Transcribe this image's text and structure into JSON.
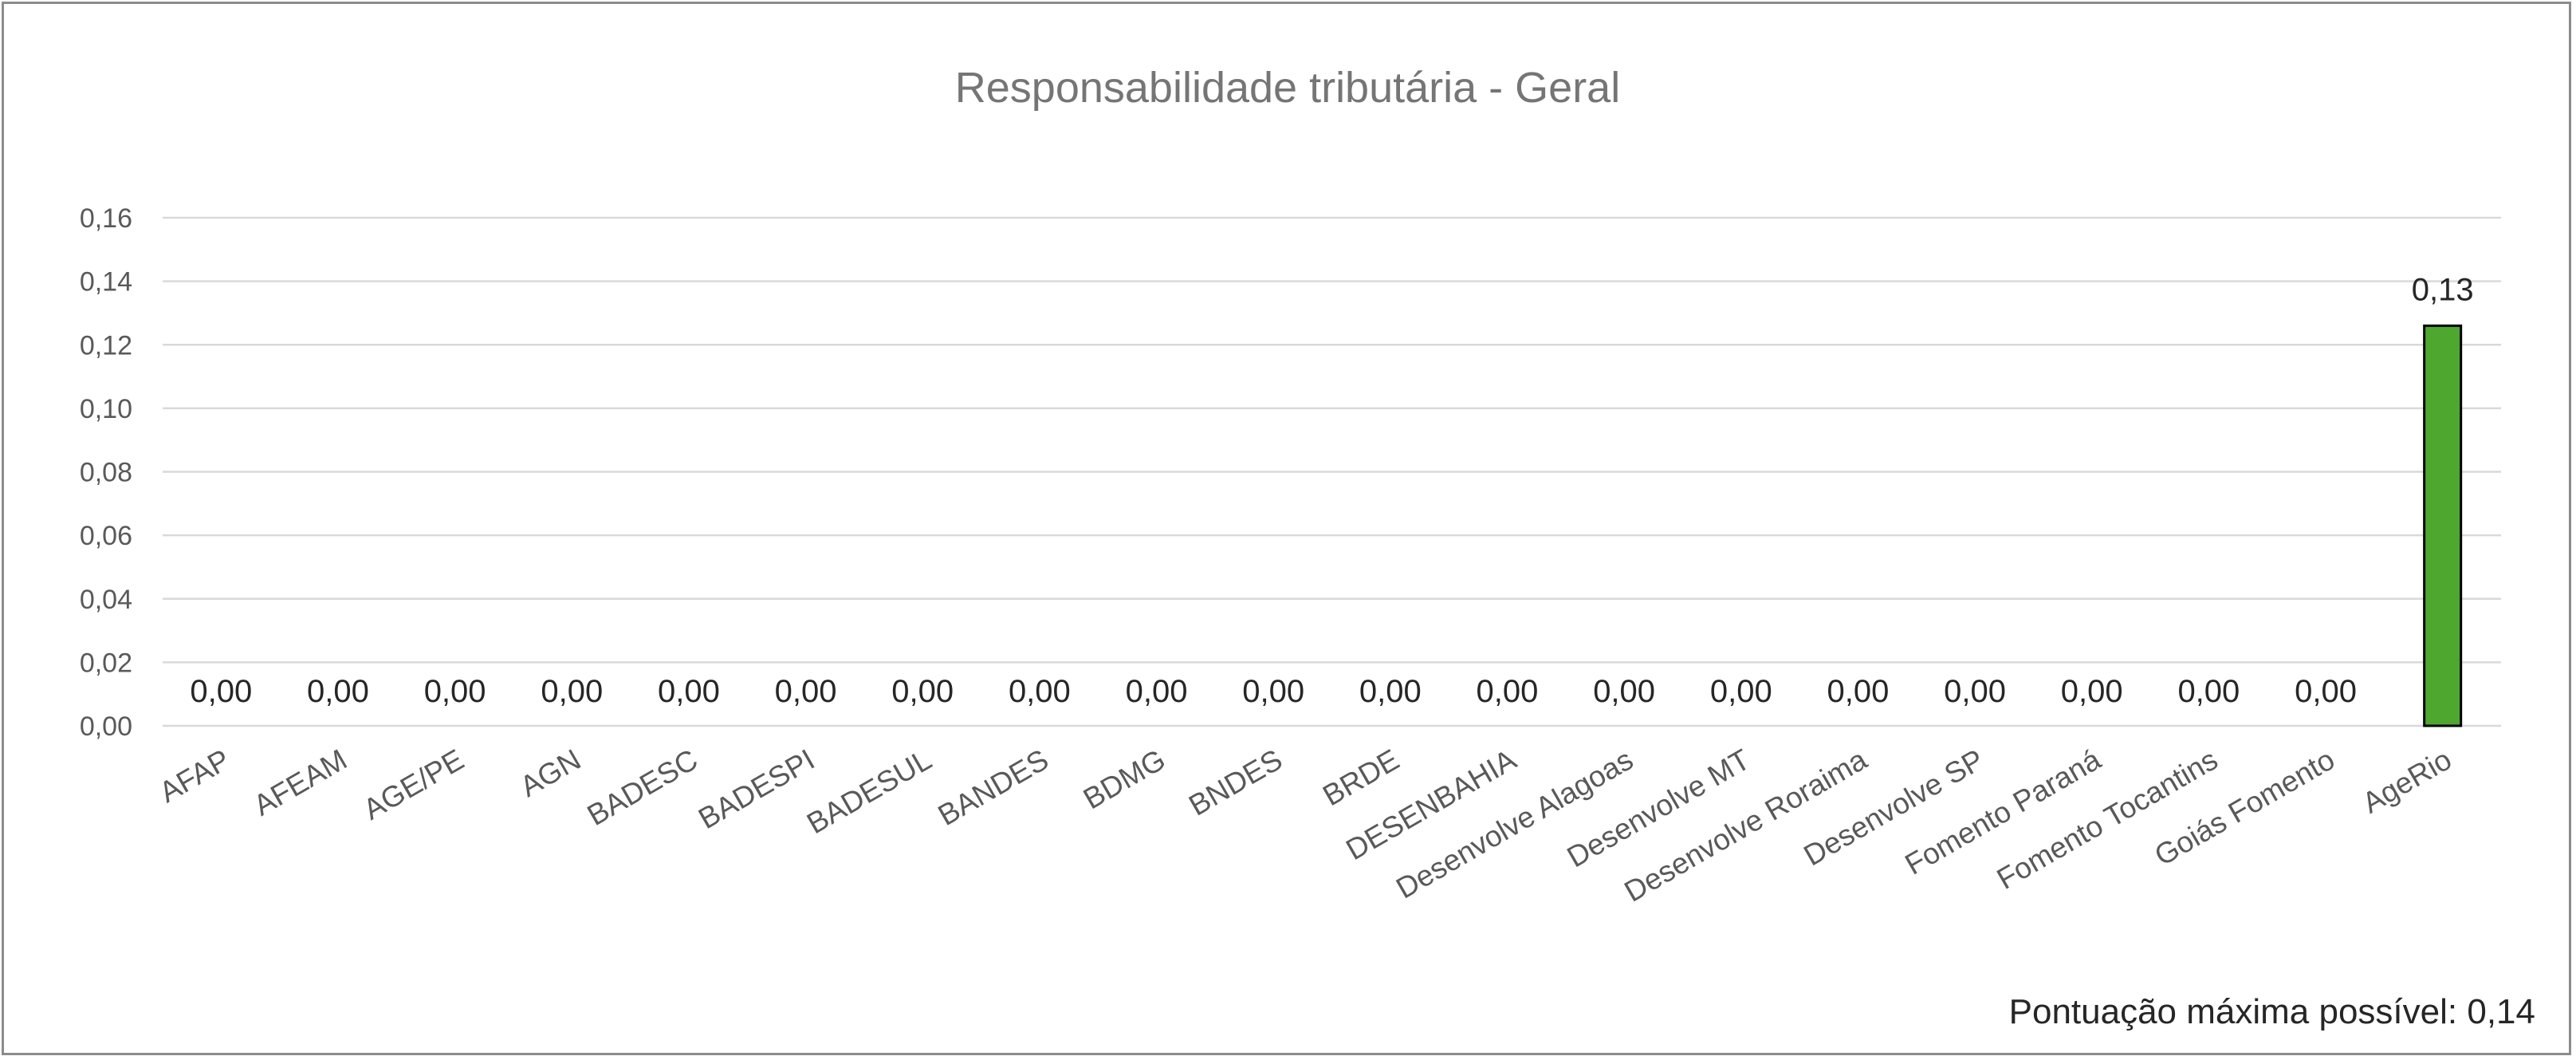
{
  "chart_data": {
    "type": "bar",
    "title": "Responsabilidade tributária - Geral",
    "categories": [
      "AFAP",
      "AFEAM",
      "AGE/PE",
      "AGN",
      "BADESC",
      "BADESPI",
      "BADESUL",
      "BANDES",
      "BDMG",
      "BNDES",
      "BRDE",
      "DESENBAHIA",
      "Desenvolve Alagoas",
      "Desenvolve MT",
      "Desenvolve Roraima",
      "Desenvolve SP",
      "Fomento Paraná",
      "Fomento Tocantins",
      "Goiás Fomento",
      "AgeRio"
    ],
    "values": [
      0,
      0,
      0,
      0,
      0,
      0,
      0,
      0,
      0,
      0,
      0,
      0,
      0,
      0,
      0,
      0,
      0,
      0,
      0,
      0.126
    ],
    "data_labels": [
      "0,00",
      "0,00",
      "0,00",
      "0,00",
      "0,00",
      "0,00",
      "0,00",
      "0,00",
      "0,00",
      "0,00",
      "0,00",
      "0,00",
      "0,00",
      "0,00",
      "0,00",
      "0,00",
      "0,00",
      "0,00",
      "0,00",
      "0,13"
    ],
    "yticks": [
      0,
      0.02,
      0.04,
      0.06,
      0.08,
      0.1,
      0.12,
      0.14,
      0.16
    ],
    "ytick_labels": [
      "0,00",
      "0,02",
      "0,04",
      "0,06",
      "0,08",
      "0,10",
      "0,12",
      "0,14",
      "0,16"
    ],
    "ylim": [
      0,
      0.16
    ],
    "grid": true,
    "legend": "none",
    "bar_color": "#4ea72e",
    "bar_edge_color": "#000000",
    "annotation": "Pontuação máxima possível:  0,14"
  }
}
